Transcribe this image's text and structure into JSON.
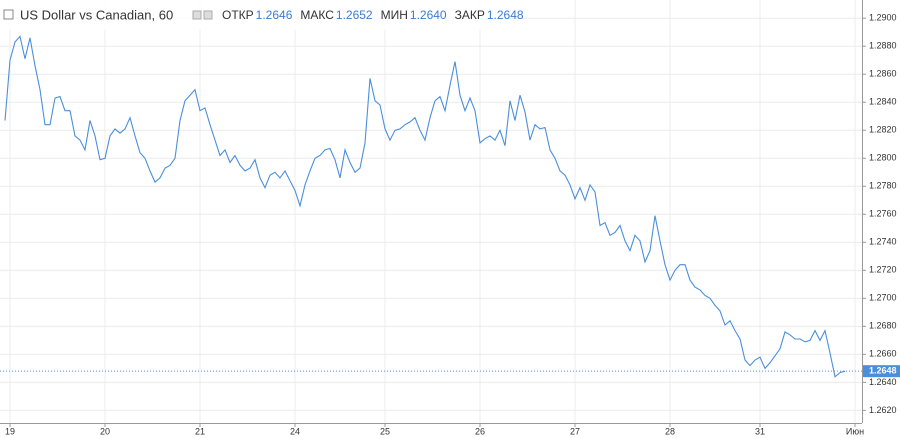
{
  "header": {
    "title": "US Dollar vs Canadian, 60",
    "ohlc": [
      {
        "label": "ОТКР",
        "value": "1.2646"
      },
      {
        "label": "МАКС",
        "value": "1.2652"
      },
      {
        "label": "МИН",
        "value": "1.2640"
      },
      {
        "label": "ЗАКР",
        "value": "1.2648"
      }
    ]
  },
  "chart_data": {
    "type": "line",
    "color": "#4a8fdc",
    "grid": true,
    "categories": [
      null,
      "19",
      null,
      null,
      null,
      null,
      null,
      null,
      null,
      null,
      null,
      null,
      null,
      null,
      null,
      null,
      null,
      null,
      null,
      null,
      "20",
      null,
      null,
      null,
      null,
      null,
      null,
      null,
      null,
      null,
      null,
      null,
      null,
      null,
      null,
      null,
      null,
      null,
      null,
      "21",
      null,
      null,
      null,
      null,
      null,
      null,
      null,
      null,
      null,
      null,
      null,
      null,
      null,
      null,
      null,
      null,
      null,
      null,
      "24",
      null,
      null,
      null,
      null,
      null,
      null,
      null,
      null,
      null,
      null,
      null,
      null,
      null,
      null,
      null,
      null,
      null,
      "25",
      null,
      null,
      null,
      null,
      null,
      null,
      null,
      null,
      null,
      null,
      null,
      null,
      null,
      null,
      null,
      null,
      null,
      null,
      "26",
      null,
      null,
      null,
      null,
      null,
      null,
      null,
      null,
      null,
      null,
      null,
      null,
      null,
      null,
      null,
      null,
      null,
      null,
      "27",
      null,
      null,
      null,
      null,
      null,
      null,
      null,
      null,
      null,
      null,
      null,
      null,
      null,
      null,
      null,
      null,
      null,
      null,
      "28",
      null,
      null,
      null,
      null,
      null,
      null,
      null,
      null,
      null,
      null,
      null,
      null,
      null,
      null,
      null,
      null,
      null,
      "31",
      null,
      null,
      null,
      null,
      null,
      null,
      null,
      null,
      null,
      null,
      null,
      null,
      null,
      null,
      null,
      null,
      null,
      null,
      "Июн"
    ],
    "values": [
      1.2827,
      1.287,
      1.2883,
      1.2887,
      1.2871,
      1.2886,
      1.2866,
      1.2849,
      1.2824,
      1.2824,
      1.2843,
      1.2844,
      1.2834,
      1.2834,
      1.2816,
      1.2813,
      1.2806,
      1.2827,
      1.2816,
      1.2799,
      1.28,
      1.2816,
      1.2821,
      1.2818,
      1.2821,
      1.2829,
      1.2816,
      1.2804,
      1.28,
      1.2791,
      1.2783,
      1.2786,
      1.2793,
      1.2795,
      1.28,
      1.2827,
      1.2841,
      1.2845,
      1.2849,
      1.2834,
      1.2836,
      1.2824,
      1.2813,
      1.2802,
      1.2806,
      1.2797,
      1.2802,
      1.2795,
      1.2791,
      1.2793,
      1.2799,
      1.2786,
      1.2779,
      1.2788,
      1.279,
      1.2786,
      1.2791,
      1.2784,
      1.2777,
      1.2766,
      1.2781,
      1.2791,
      1.28,
      1.2802,
      1.2806,
      1.2807,
      1.2799,
      1.2786,
      1.2806,
      1.2797,
      1.279,
      1.2793,
      1.2811,
      1.2857,
      1.2841,
      1.2838,
      1.2821,
      1.2813,
      1.282,
      1.2821,
      1.2824,
      1.2826,
      1.2829,
      1.282,
      1.2813,
      1.2829,
      1.2841,
      1.2844,
      1.2834,
      1.2852,
      1.2869,
      1.2845,
      1.2834,
      1.2843,
      1.2834,
      1.2811,
      1.2814,
      1.2816,
      1.2813,
      1.282,
      1.2809,
      1.2841,
      1.2827,
      1.2845,
      1.2833,
      1.2813,
      1.2824,
      1.2821,
      1.2822,
      1.2806,
      1.28,
      1.2791,
      1.2788,
      1.2781,
      1.2771,
      1.2779,
      1.277,
      1.2781,
      1.2776,
      1.2752,
      1.2754,
      1.2745,
      1.2747,
      1.2752,
      1.2741,
      1.2734,
      1.2745,
      1.2741,
      1.2726,
      1.2734,
      1.2759,
      1.2741,
      1.2724,
      1.2713,
      1.272,
      1.2724,
      1.2724,
      1.2713,
      1.2708,
      1.2706,
      1.2702,
      1.27,
      1.2695,
      1.2691,
      1.2681,
      1.2684,
      1.2677,
      1.2671,
      1.2656,
      1.2652,
      1.2656,
      1.2658,
      1.265,
      1.2654,
      1.2659,
      1.2664,
      1.2676,
      1.2674,
      1.2671,
      1.2671,
      1.2669,
      1.267,
      1.2677,
      1.267,
      1.2677,
      1.2661,
      1.2644,
      1.2647,
      1.2648,
      null,
      null
    ],
    "last_price": 1.2648,
    "ylim": [
      1.2611,
      1.2913
    ],
    "yticks": [
      {
        "value": 1.262,
        "label": "1.2620"
      },
      {
        "value": 1.264,
        "label": "1.2640"
      },
      {
        "value": 1.266,
        "label": "1.2660"
      },
      {
        "value": 1.268,
        "label": "1.2680"
      },
      {
        "value": 1.27,
        "label": "1.2700"
      },
      {
        "value": 1.272,
        "label": "1.2720"
      },
      {
        "value": 1.274,
        "label": "1.2740"
      },
      {
        "value": 1.276,
        "label": "1.2760"
      },
      {
        "value": 1.278,
        "label": "1.2780"
      },
      {
        "value": 1.28,
        "label": "1.2800"
      },
      {
        "value": 1.282,
        "label": "1.2820"
      },
      {
        "value": 1.284,
        "label": "1.2840"
      },
      {
        "value": 1.286,
        "label": "1.2860"
      },
      {
        "value": 1.288,
        "label": "1.2880"
      },
      {
        "value": 1.29,
        "label": "1.2900"
      }
    ]
  }
}
